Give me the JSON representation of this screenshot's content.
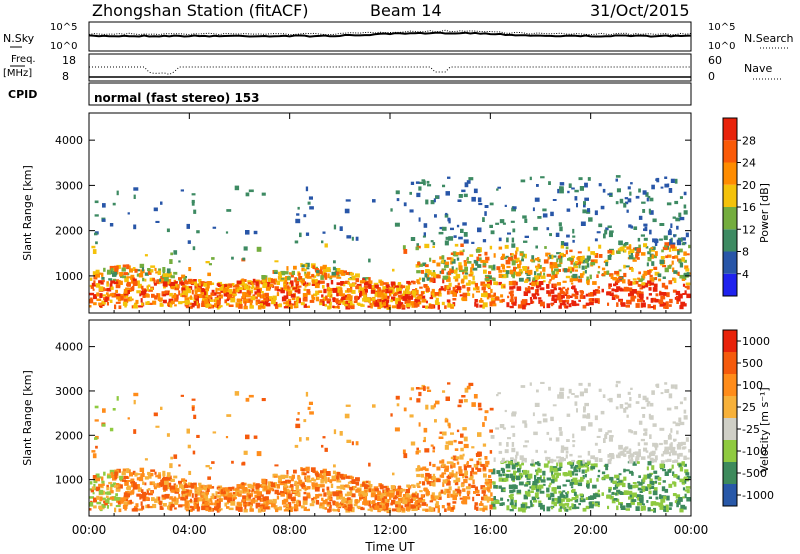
{
  "header": {
    "station": "Zhongshan Station (fitACF)",
    "beam": "Beam 14",
    "date": "31/Oct/2015"
  },
  "strip_panels": {
    "nsky_label": "N.Sky",
    "nsearch_label": "N.Search",
    "noise_ticks": [
      "10^5",
      "10^0"
    ],
    "freq_label_top": "Freq.",
    "freq_label_unit": "[MHz]",
    "freq_ticks": [
      "18",
      "8"
    ],
    "nave_label": "Nave",
    "nave_ticks": [
      "60",
      "0"
    ],
    "cpid_label": "CPID",
    "cpid_text": "normal (fast stereo) 153"
  },
  "colors": {
    "power_scale": [
      "#1f22ee",
      "#2856a8",
      "#3d8a62",
      "#74ad3e",
      "#f4c20a",
      "#ff8c00",
      "#fa5a08",
      "#e8220a"
    ],
    "velocity_scale": [
      "#e8220a",
      "#f55a0c",
      "#ff8c1a",
      "#f7b13a",
      "#cfcfc6",
      "#8fca40",
      "#3d8a5c",
      "#2858a8"
    ],
    "axis": "#000000"
  },
  "chart_data": [
    {
      "type": "heatmap",
      "title": "",
      "xlabel": "",
      "ylabel": "Slant Range [km]",
      "x_ticks": [
        "00:00",
        "04:00",
        "08:00",
        "12:00",
        "16:00",
        "20:00",
        "00:00"
      ],
      "x_range_hours": [
        0,
        24
      ],
      "y_ticks": [
        1000,
        2000,
        3000,
        4000
      ],
      "ylim": [
        180,
        4600
      ],
      "colorbar": {
        "label": "Power [dB]",
        "ticks": [
          "4",
          "8",
          "12",
          "16",
          "20",
          "24",
          "28"
        ],
        "range": [
          0,
          30
        ]
      }
    },
    {
      "type": "heatmap",
      "title": "",
      "xlabel": "Time UT",
      "ylabel": "Slant Range [km]",
      "x_ticks": [
        "00:00",
        "04:00",
        "08:00",
        "12:00",
        "16:00",
        "20:00",
        "00:00"
      ],
      "x_range_hours": [
        0,
        24
      ],
      "y_ticks": [
        1000,
        2000,
        3000,
        4000
      ],
      "ylim": [
        180,
        4600
      ],
      "colorbar": {
        "label": "Velocity [m s⁻¹]",
        "ticks": [
          "1000",
          "500",
          "100",
          "25",
          "-25",
          "-100",
          "-500",
          "-1000"
        ]
      }
    }
  ]
}
